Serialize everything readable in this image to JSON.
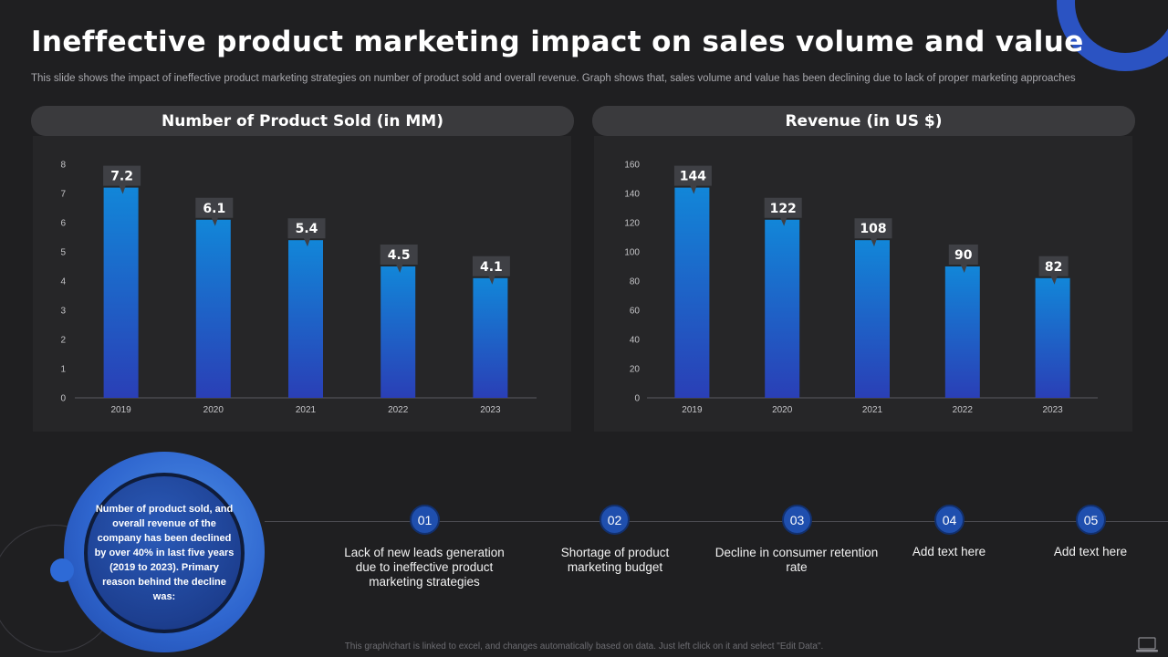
{
  "title": "Ineffective product marketing impact on sales volume and value",
  "subtitle": "This slide shows the impact of ineffective  product marketing strategies on number of product sold and overall revenue. Graph shows that, sales volume and value has been declining due to lack of proper marketing approaches",
  "colors": {
    "accent": "#1f4fae",
    "bar_top": "#1286d8",
    "bar_bottom": "#2a3fb6",
    "callout": "#3f4045"
  },
  "chart_data": [
    {
      "type": "bar",
      "title": "Number of Product Sold (in MM)",
      "categories": [
        "2019",
        "2020",
        "2021",
        "2022",
        "2023"
      ],
      "values": [
        7.2,
        6.1,
        5.4,
        4.5,
        4.1
      ],
      "value_labels": [
        "7.2",
        "6.1",
        "5.4",
        "4.5",
        "4.1"
      ],
      "yticks": [
        "0",
        "1",
        "2",
        "3",
        "4",
        "5",
        "6",
        "7",
        "8"
      ],
      "ylim": [
        0,
        8
      ],
      "xlabel": "",
      "ylabel": "",
      "grid": false
    },
    {
      "type": "bar",
      "title": "Revenue (in US $)",
      "categories": [
        "2019",
        "2020",
        "2021",
        "2022",
        "2023"
      ],
      "values": [
        144,
        122,
        108,
        90,
        82
      ],
      "value_labels": [
        "144",
        "122",
        "108",
        "90",
        "82"
      ],
      "yticks": [
        "0",
        "20",
        "40",
        "60",
        "80",
        "100",
        "120",
        "140",
        "160"
      ],
      "ylim": [
        0,
        160
      ],
      "xlabel": "",
      "ylabel": "",
      "grid": false
    }
  ],
  "summary": "Number of product sold, and overall revenue of the company has been declined by over 40% in last five years (2019 to 2023). Primary reason behind the decline was:",
  "steps": [
    {
      "num": "01",
      "text": "Lack of new leads generation due to ineffective product marketing strategies"
    },
    {
      "num": "02",
      "text": "Shortage of product marketing budget"
    },
    {
      "num": "03",
      "text": "Decline in consumer retention rate"
    },
    {
      "num": "04",
      "text": "Add text here"
    },
    {
      "num": "05",
      "text": "Add text here"
    }
  ],
  "footer": "This graph/chart is linked to excel, and changes automatically based on data. Just left click on it and select \"Edit Data\".",
  "icons": {
    "corner_decoration": "ring-arc",
    "footer": "laptop-icon"
  }
}
